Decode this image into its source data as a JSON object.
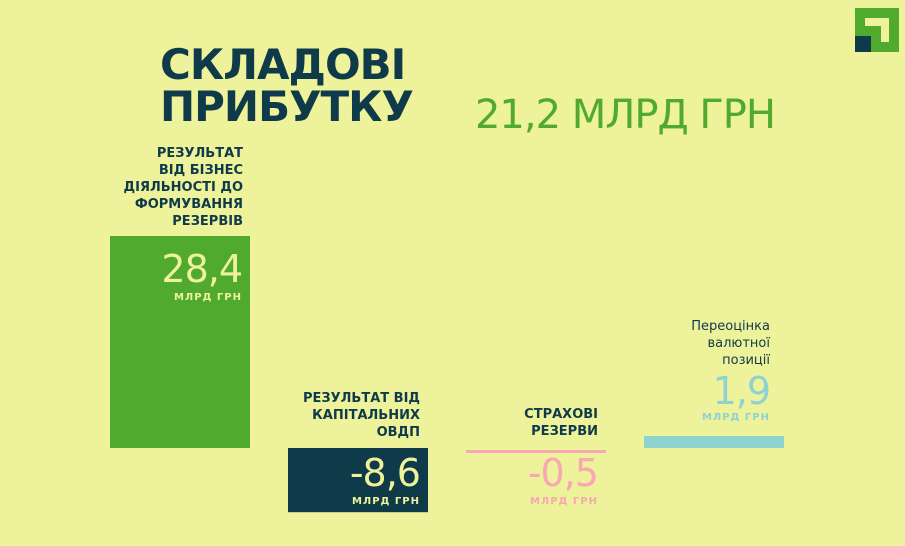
{
  "header": {
    "title": "СКЛАДОВІ ПРИБУТКУ",
    "subtitle": "21,2 МЛРД ГРН"
  },
  "logo": {
    "icon": "privatbank-logo-icon",
    "colors": [
      "#4faa2e",
      "#0f3a4a"
    ]
  },
  "chart_data": {
    "type": "bar",
    "title": "СКЛАДОВІ ПРИБУТКУ",
    "subtitle": "21,2 МЛРД ГРН",
    "unit": "МЛРД ГРН",
    "categories": [
      "РЕЗУЛЬТАТ ВІД БІЗНЕС ДІЯЛЬНОСТІ ДО ФОРМУВАННЯ РЕЗЕРВІВ",
      "РЕЗУЛЬТАТ ВІД КАПІТАЛЬНИХ ОВДП",
      "СТРАХОВІ РЕЗЕРВИ",
      "Переоцінка валютної позиції"
    ],
    "values": [
      28.4,
      -8.6,
      -0.5,
      1.9
    ],
    "value_labels": [
      "28,4",
      "-8,6",
      "-0,5",
      "1,9"
    ],
    "colors": [
      "#4faa2e",
      "#0f3a4a",
      "#f7a8b0",
      "#8fd3d0"
    ],
    "axes_visible": false,
    "grid": false,
    "legend": "none"
  },
  "labels": {
    "cat1": "РЕЗУЛЬТАТ\nВІД БІЗНЕС\nДІЯЛЬНОСТІ ДО\nФОРМУВАННЯ\nРЕЗЕРВІВ",
    "cat2": "РЕЗУЛЬТАТ ВІД\nКАПІТАЛЬНИХ\nОВДП",
    "cat3": "СТРАХОВІ\nРЕЗЕРВИ",
    "cat4": "Переоцінка\nвалютної\nпозиції",
    "unit": "МЛРД ГРН"
  }
}
